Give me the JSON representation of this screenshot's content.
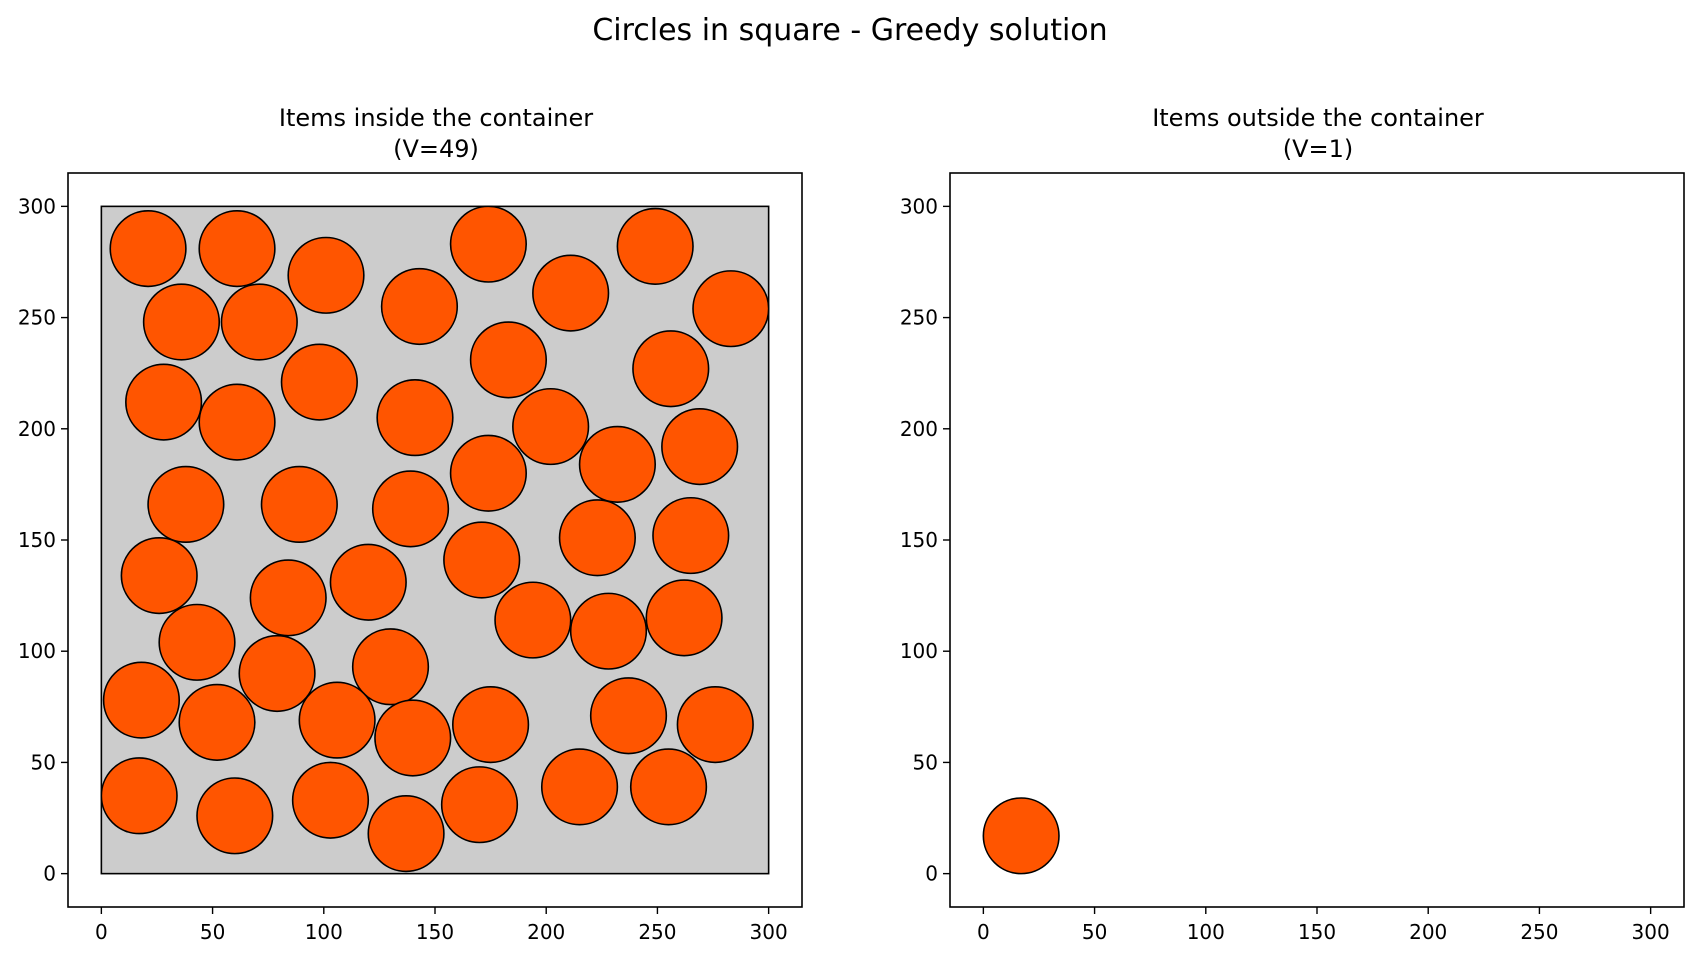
{
  "figure": {
    "title": "Circles in square - Greedy solution"
  },
  "chart_data": [
    {
      "type": "scatter",
      "title": "Items inside the container",
      "subtitle": "(V=49)",
      "xlabel": "",
      "ylabel": "",
      "xlim": [
        -15,
        315
      ],
      "ylim": [
        -15,
        315
      ],
      "xticks": [
        0,
        50,
        100,
        150,
        200,
        250,
        300
      ],
      "yticks": [
        0,
        50,
        100,
        150,
        200,
        250,
        300
      ],
      "container": {
        "x": [
          0,
          300
        ],
        "y": [
          0,
          300
        ],
        "fill": "#cccccc",
        "stroke": "#000000"
      },
      "circle_radius": 17,
      "circle_fill": "#ff5500",
      "circle_stroke": "#000000",
      "grid": false,
      "circles": [
        {
          "x": 21,
          "y": 281
        },
        {
          "x": 61,
          "y": 281
        },
        {
          "x": 101,
          "y": 269
        },
        {
          "x": 174,
          "y": 283
        },
        {
          "x": 249,
          "y": 282
        },
        {
          "x": 36,
          "y": 248
        },
        {
          "x": 71,
          "y": 248
        },
        {
          "x": 143,
          "y": 255
        },
        {
          "x": 211,
          "y": 261
        },
        {
          "x": 283,
          "y": 254
        },
        {
          "x": 183,
          "y": 231
        },
        {
          "x": 256,
          "y": 227
        },
        {
          "x": 28,
          "y": 212
        },
        {
          "x": 98,
          "y": 221
        },
        {
          "x": 61,
          "y": 203
        },
        {
          "x": 141,
          "y": 205
        },
        {
          "x": 202,
          "y": 201
        },
        {
          "x": 269,
          "y": 192
        },
        {
          "x": 174,
          "y": 180
        },
        {
          "x": 232,
          "y": 184
        },
        {
          "x": 38,
          "y": 166
        },
        {
          "x": 89,
          "y": 166
        },
        {
          "x": 139,
          "y": 164
        },
        {
          "x": 26,
          "y": 134
        },
        {
          "x": 171,
          "y": 141
        },
        {
          "x": 223,
          "y": 151
        },
        {
          "x": 265,
          "y": 152
        },
        {
          "x": 84,
          "y": 124
        },
        {
          "x": 120,
          "y": 131
        },
        {
          "x": 194,
          "y": 114
        },
        {
          "x": 43,
          "y": 104
        },
        {
          "x": 228,
          "y": 109
        },
        {
          "x": 262,
          "y": 115
        },
        {
          "x": 79,
          "y": 90
        },
        {
          "x": 130,
          "y": 93
        },
        {
          "x": 18,
          "y": 78
        },
        {
          "x": 52,
          "y": 68
        },
        {
          "x": 106,
          "y": 69
        },
        {
          "x": 140,
          "y": 61
        },
        {
          "x": 175,
          "y": 67
        },
        {
          "x": 237,
          "y": 71
        },
        {
          "x": 276,
          "y": 67
        },
        {
          "x": 17,
          "y": 35
        },
        {
          "x": 60,
          "y": 26
        },
        {
          "x": 103,
          "y": 33
        },
        {
          "x": 137,
          "y": 18
        },
        {
          "x": 170,
          "y": 31
        },
        {
          "x": 215,
          "y": 39
        },
        {
          "x": 255,
          "y": 39
        }
      ]
    },
    {
      "type": "scatter",
      "title": "Items outside the container",
      "subtitle": "(V=1)",
      "xlabel": "",
      "ylabel": "",
      "xlim": [
        -15,
        315
      ],
      "ylim": [
        -15,
        315
      ],
      "xticks": [
        0,
        50,
        100,
        150,
        200,
        250,
        300
      ],
      "yticks": [
        0,
        50,
        100,
        150,
        200,
        250,
        300
      ],
      "circle_radius": 17,
      "circle_fill": "#ff5500",
      "circle_stroke": "#000000",
      "grid": false,
      "circles": [
        {
          "x": 17,
          "y": 17
        }
      ]
    }
  ]
}
